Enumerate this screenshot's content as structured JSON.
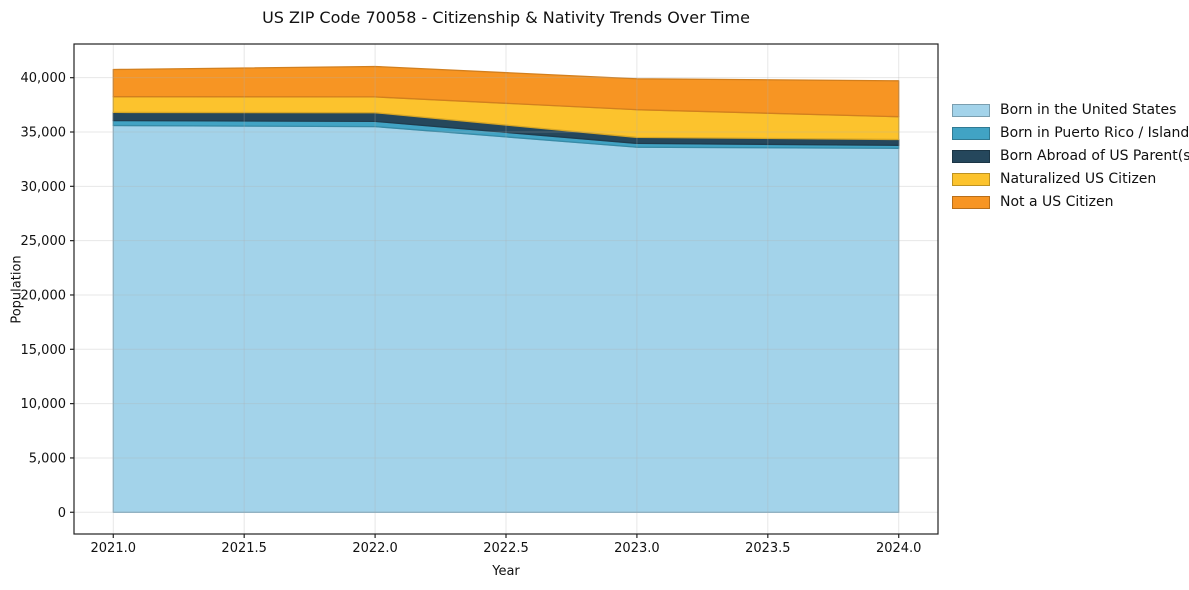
{
  "title": "US ZIP Code 70058 - Citizenship & Nativity Trends Over Time",
  "chart_data": {
    "type": "area",
    "stacked": true,
    "title": "US ZIP Code 70058 - Citizenship & Nativity Trends Over Time",
    "xlabel": "Year",
    "ylabel": "Population",
    "x": [
      2021,
      2022,
      2023,
      2024
    ],
    "series": [
      {
        "name": "Born in the United States",
        "color": "#a3d3ea",
        "values": [
          35600,
          35500,
          33600,
          33500
        ]
      },
      {
        "name": "Born in Puerto Rico / Islands",
        "color": "#41a3c4",
        "values": [
          450,
          480,
          350,
          280
        ]
      },
      {
        "name": "Born Abroad of US Parent(s)",
        "color": "#25475c",
        "values": [
          750,
          800,
          550,
          530
        ]
      },
      {
        "name": "Naturalized US Citizen",
        "color": "#fcc32d",
        "values": [
          1450,
          1450,
          2550,
          2100
        ]
      },
      {
        "name": "Not a US Citizen",
        "color": "#f79523",
        "values": [
          2500,
          2800,
          2850,
          3300
        ]
      }
    ],
    "stack_totals": [
      40750,
      41030,
      39900,
      39710
    ],
    "xtick_labels": [
      "2021.0",
      "2021.5",
      "2022.0",
      "2022.5",
      "2023.0",
      "2023.5",
      "2024.0"
    ],
    "xtick_values": [
      2021,
      2021.5,
      2022,
      2022.5,
      2023,
      2023.5,
      2024
    ],
    "ytick_labels": [
      "0",
      "5,000",
      "10,000",
      "15,000",
      "20,000",
      "25,000",
      "30,000",
      "35,000",
      "40,000"
    ],
    "ytick_values": [
      0,
      5000,
      10000,
      15000,
      20000,
      25000,
      30000,
      35000,
      40000
    ],
    "xlim": [
      2020.85,
      2024.15
    ],
    "ylim": [
      -2000,
      43100
    ],
    "grid": true,
    "grid_color": "#b0b0b0",
    "legend_position": "right-outside",
    "background": "#ffffff",
    "spine_color": "#222222"
  }
}
